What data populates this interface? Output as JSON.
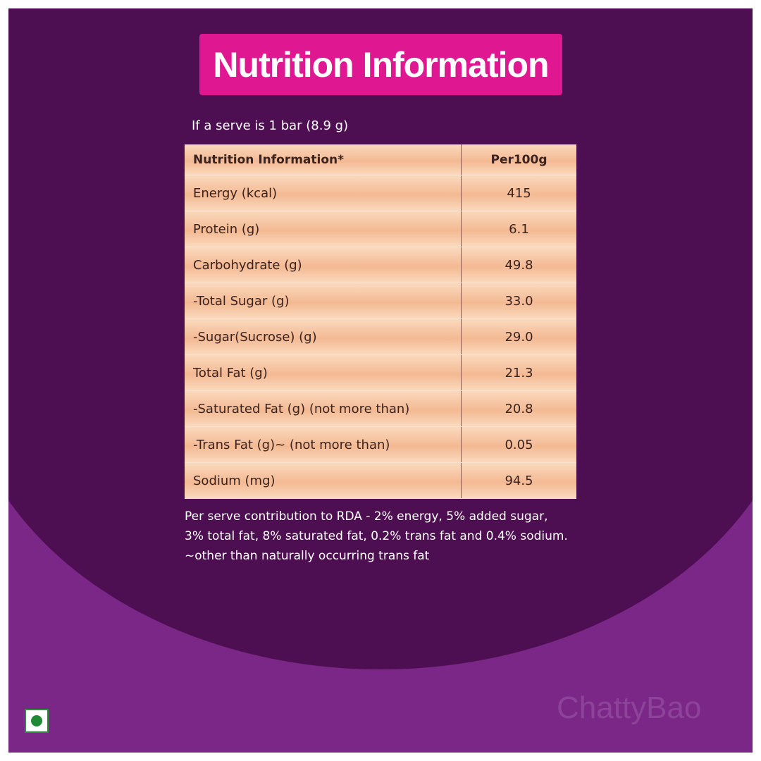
{
  "header": {
    "title": "Nutrition Information"
  },
  "serving": "If a serve is 1 bar (8.9 g)",
  "table": {
    "header": [
      "Nutrition Information*",
      "Per100g"
    ],
    "rows": [
      [
        "Energy (kcal)",
        "415"
      ],
      [
        "Protein (g)",
        "6.1"
      ],
      [
        "Carbohydrate (g)",
        "49.8"
      ],
      [
        "-Total Sugar (g)",
        "33.0"
      ],
      [
        "-Sugar(Sucrose) (g)",
        "29.0"
      ],
      [
        "Total Fat (g)",
        "21.3"
      ],
      [
        "-Saturated Fat (g) (not more than)",
        "20.8"
      ],
      [
        "-Trans Fat (g)~ (not more than)",
        "0.05"
      ],
      [
        "Sodium (mg)",
        "94.5"
      ]
    ]
  },
  "footnotes": [
    "Per serve contribution to RDA - 2% energy, 5% added sugar,",
    "3% total fat, 8% saturated fat, 0.2% trans fat and 0.4% sodium.",
    "~other than naturally occurring trans fat"
  ],
  "watermark": "ChattyBao"
}
